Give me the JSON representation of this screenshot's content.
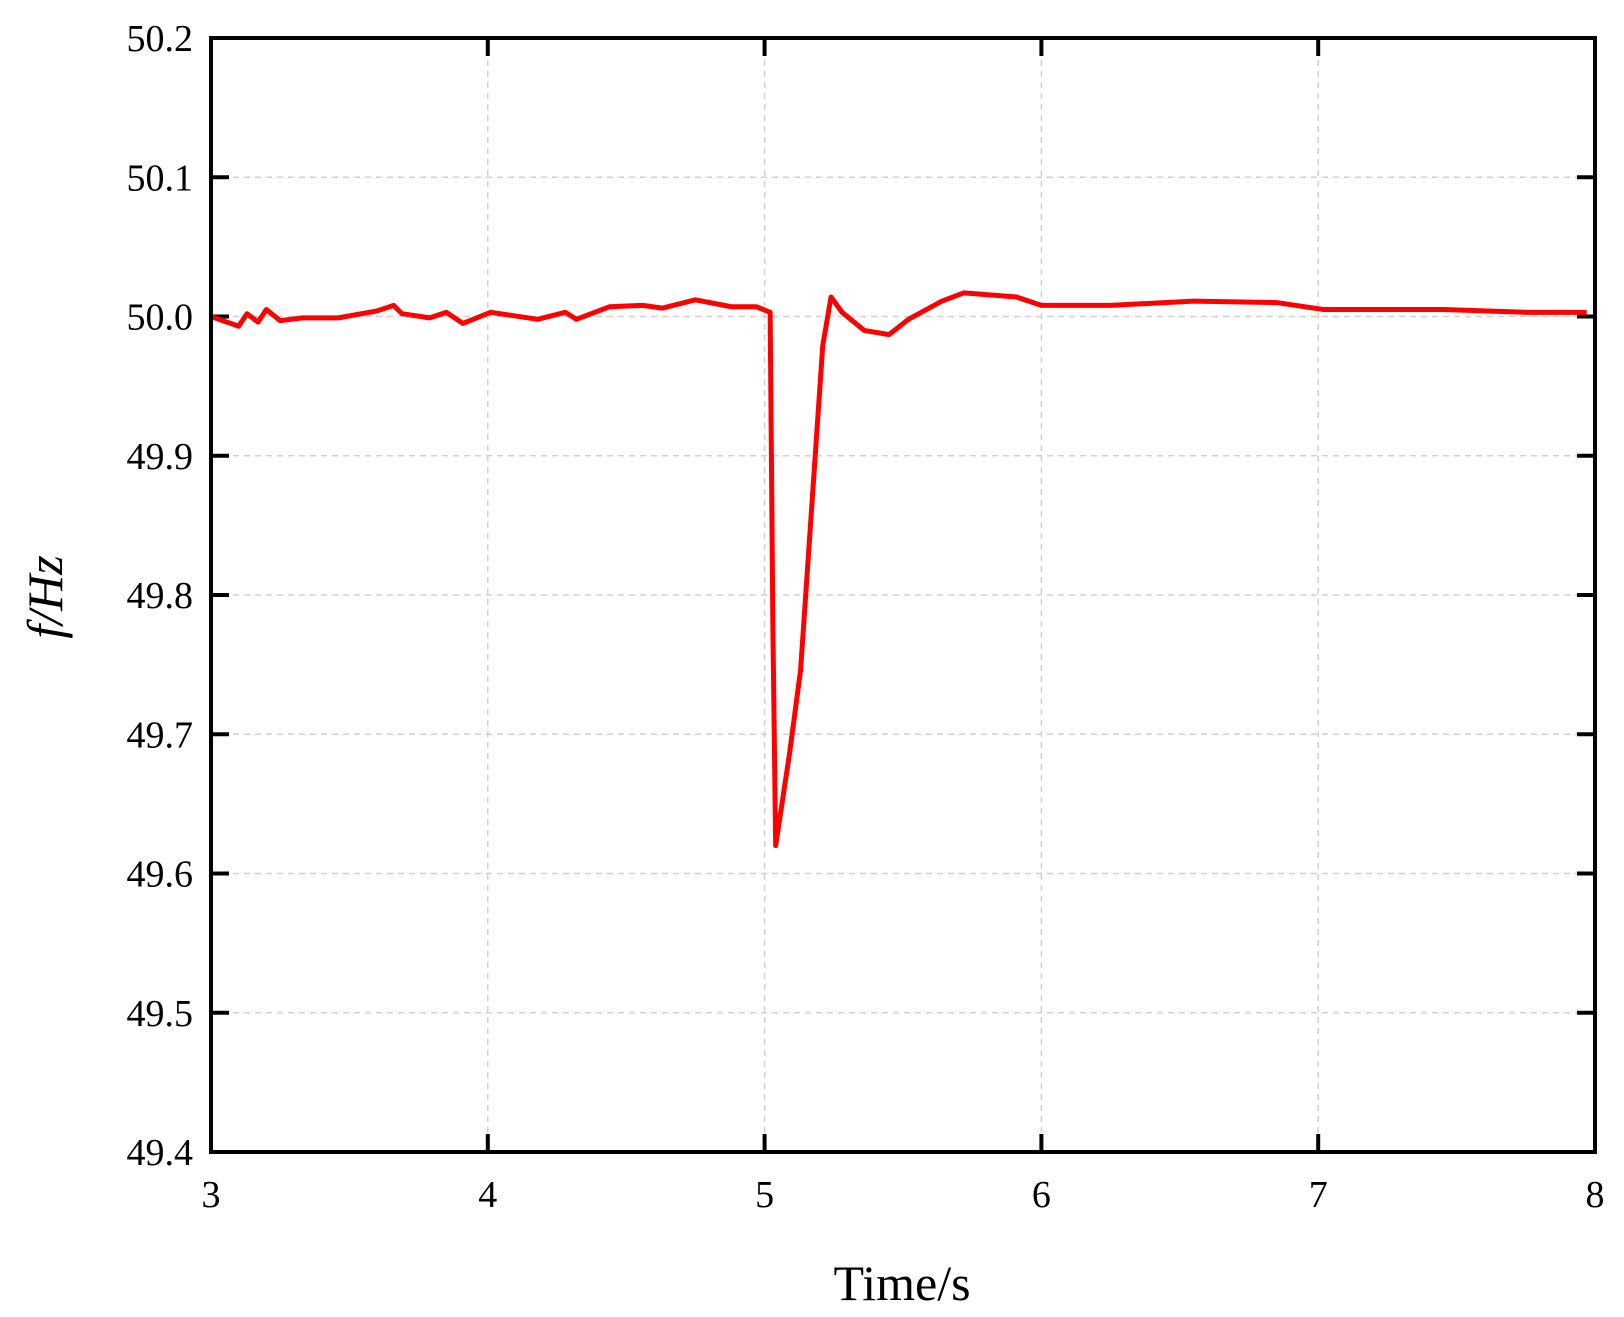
{
  "chart_data": {
    "type": "line",
    "xlabel": "Time/s",
    "ylabel": "f/Hz",
    "xlim": [
      3,
      8
    ],
    "ylim": [
      49.4,
      50.2
    ],
    "xticks": [
      3,
      4,
      5,
      6,
      7,
      8
    ],
    "yticks": [
      49.4,
      49.5,
      49.6,
      49.7,
      49.8,
      49.9,
      {
        "value": 50,
        "label": "50.0"
      },
      50.1,
      50.2
    ],
    "grid": true,
    "x": [
      3.0,
      3.1,
      3.13,
      3.17,
      3.2,
      3.25,
      3.33,
      3.46,
      3.6,
      3.66,
      3.69,
      3.79,
      3.85,
      3.91,
      4.01,
      4.18,
      4.28,
      4.32,
      4.44,
      4.56,
      4.63,
      4.75,
      4.88,
      4.97,
      5.02,
      5.03,
      5.04,
      5.09,
      5.13,
      5.21,
      5.24,
      5.28,
      5.36,
      5.45,
      5.52,
      5.64,
      5.72,
      5.91,
      6.0,
      6.25,
      6.55,
      6.85,
      7.02,
      7.45,
      7.75,
      7.97
    ],
    "series": [
      {
        "color": "#ff0000",
        "values": [
          50.0,
          49.993,
          50.002,
          49.996,
          50.005,
          49.997,
          49.999,
          49.999,
          50.004,
          50.008,
          50.002,
          49.999,
          50.003,
          49.995,
          50.003,
          49.998,
          50.003,
          49.998,
          50.007,
          50.008,
          50.006,
          50.012,
          50.007,
          50.007,
          50.003,
          49.776,
          49.62,
          49.686,
          49.746,
          49.979,
          50.014,
          50.003,
          49.99,
          49.987,
          49.998,
          50.011,
          50.017,
          50.014,
          50.008,
          50.008,
          50.011,
          50.01,
          50.005,
          50.005,
          50.003,
          50.003
        ]
      }
    ]
  }
}
